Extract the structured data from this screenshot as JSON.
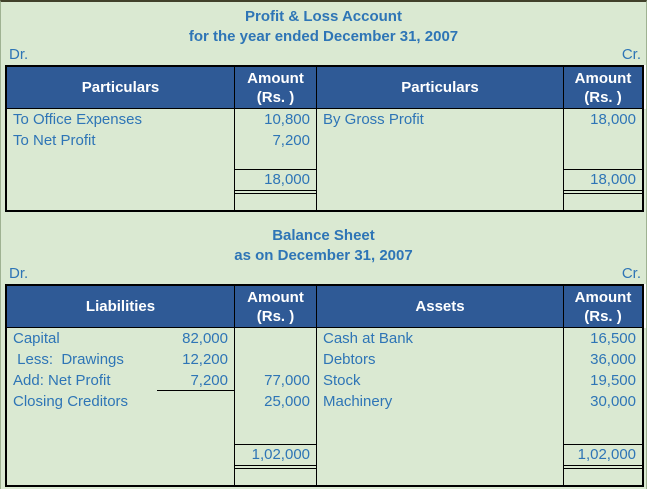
{
  "colors": {
    "background": "#DAE9D2",
    "header_bg": "#2F5A96",
    "header_text": "#FFFFFF",
    "text_blue": "#2E75B6",
    "border": "#000000"
  },
  "pnl": {
    "title": "Profit & Loss Account",
    "subtitle": "for the year ended December 31, 2007",
    "dr_label": "Dr.",
    "cr_label": "Cr.",
    "headers": {
      "col1": "Particulars",
      "amount_line1": "Amount",
      "amount_line2": "(Rs. )",
      "col3": "Particulars"
    },
    "debit_rows": [
      {
        "label": "To Office Expenses",
        "amount": "10,800"
      },
      {
        "label": "To Net Profit",
        "amount": "7,200"
      }
    ],
    "debit_total": "18,000",
    "credit_rows": [
      {
        "label": "By Gross Profit",
        "amount": "18,000"
      }
    ],
    "credit_total": "18,000"
  },
  "balance_sheet": {
    "title": "Balance Sheet",
    "subtitle": "as on December 31, 2007",
    "dr_label": "Dr.",
    "cr_label": "Cr.",
    "headers": {
      "col1": "Liabilities",
      "amount_line1": "Amount",
      "amount_line2": "(Rs. )",
      "col3": "Assets"
    },
    "liability_rows": [
      {
        "label": "Capital",
        "sub_amount": "82,000",
        "amount": ""
      },
      {
        "label": " Less:  Drawings",
        "sub_amount": "12,200",
        "amount": ""
      },
      {
        "label": "Add: Net Profit",
        "sub_amount": "7,200",
        "amount": "77,000"
      },
      {
        "label": "Closing Creditors",
        "sub_amount": "",
        "amount": "25,000"
      }
    ],
    "liabilities_total": "1,02,000",
    "asset_rows": [
      {
        "label": "Cash at Bank",
        "amount": "16,500"
      },
      {
        "label": "Debtors",
        "amount": "36,000"
      },
      {
        "label": "Stock",
        "amount": "19,500"
      },
      {
        "label": "Machinery",
        "amount": "30,000"
      }
    ],
    "assets_total": "1,02,000"
  }
}
